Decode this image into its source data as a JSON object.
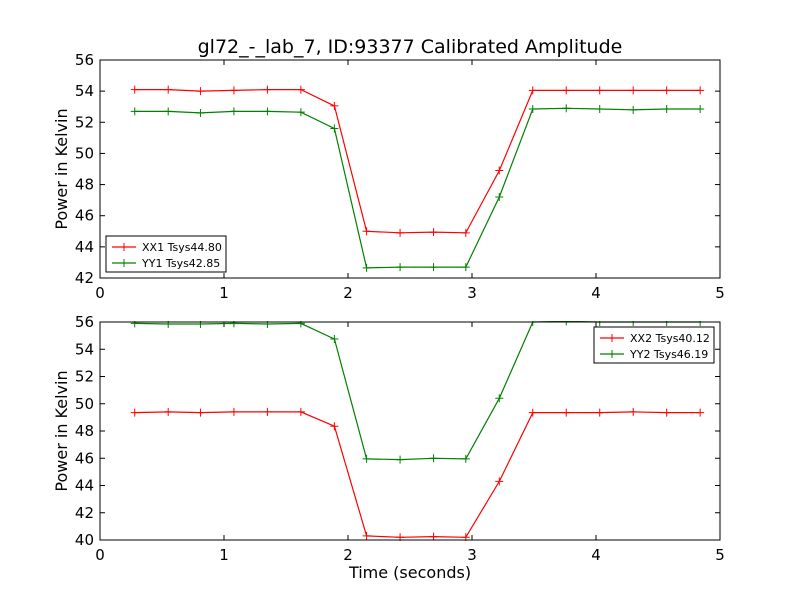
{
  "title": "gl72_-_lab_7, ID:93377 Calibrated Amplitude",
  "chart_data": [
    {
      "type": "line",
      "ylabel": "Power in Kelvin",
      "xlabel": "",
      "xlim": [
        0,
        5
      ],
      "ylim": [
        42,
        56
      ],
      "xticks": [
        0,
        1,
        2,
        3,
        4,
        5
      ],
      "yticks": [
        42,
        44,
        46,
        48,
        50,
        52,
        54,
        56
      ],
      "legend_position": "lower-left",
      "x": [
        0.28,
        0.55,
        0.81,
        1.08,
        1.35,
        1.62,
        1.89,
        2.15,
        2.42,
        2.69,
        2.95,
        3.22,
        3.49,
        3.76,
        4.03,
        4.3,
        4.57,
        4.84
      ],
      "series": [
        {
          "name": "XX1 Tsys44.80",
          "color": "#ff0000",
          "values": [
            54.1,
            54.1,
            54.0,
            54.05,
            54.1,
            54.1,
            53.05,
            45.0,
            44.9,
            44.95,
            44.9,
            48.9,
            54.05,
            54.05,
            54.05,
            54.05,
            54.05,
            54.05
          ]
        },
        {
          "name": "YY1 Tsys42.85",
          "color": "#008000",
          "values": [
            52.7,
            52.7,
            52.6,
            52.7,
            52.7,
            52.65,
            51.6,
            42.65,
            42.7,
            42.7,
            42.7,
            47.2,
            52.85,
            52.9,
            52.85,
            52.8,
            52.85,
            52.85
          ]
        }
      ]
    },
    {
      "type": "line",
      "ylabel": "Power in Kelvin",
      "xlabel": "Time (seconds)",
      "xlim": [
        0,
        5
      ],
      "ylim": [
        40,
        56
      ],
      "xticks": [
        0,
        1,
        2,
        3,
        4,
        5
      ],
      "yticks": [
        40,
        42,
        44,
        46,
        48,
        50,
        52,
        54,
        56
      ],
      "legend_position": "upper-right",
      "x": [
        0.28,
        0.55,
        0.81,
        1.08,
        1.35,
        1.62,
        1.89,
        2.15,
        2.42,
        2.69,
        2.95,
        3.22,
        3.49,
        3.76,
        4.03,
        4.3,
        4.57,
        4.84
      ],
      "series": [
        {
          "name": "XX2 Tsys40.12",
          "color": "#ff0000",
          "values": [
            49.35,
            49.4,
            49.35,
            49.4,
            49.4,
            49.4,
            48.35,
            40.3,
            40.2,
            40.25,
            40.2,
            44.3,
            49.35,
            49.35,
            49.35,
            49.4,
            49.35,
            49.35
          ]
        },
        {
          "name": "YY2 Tsys46.19",
          "color": "#008000",
          "values": [
            55.9,
            55.85,
            55.85,
            55.9,
            55.85,
            55.9,
            54.75,
            45.95,
            45.9,
            46.0,
            45.95,
            50.4,
            56.0,
            56.05,
            56.0,
            56.0,
            56.0,
            56.0
          ]
        }
      ]
    }
  ]
}
